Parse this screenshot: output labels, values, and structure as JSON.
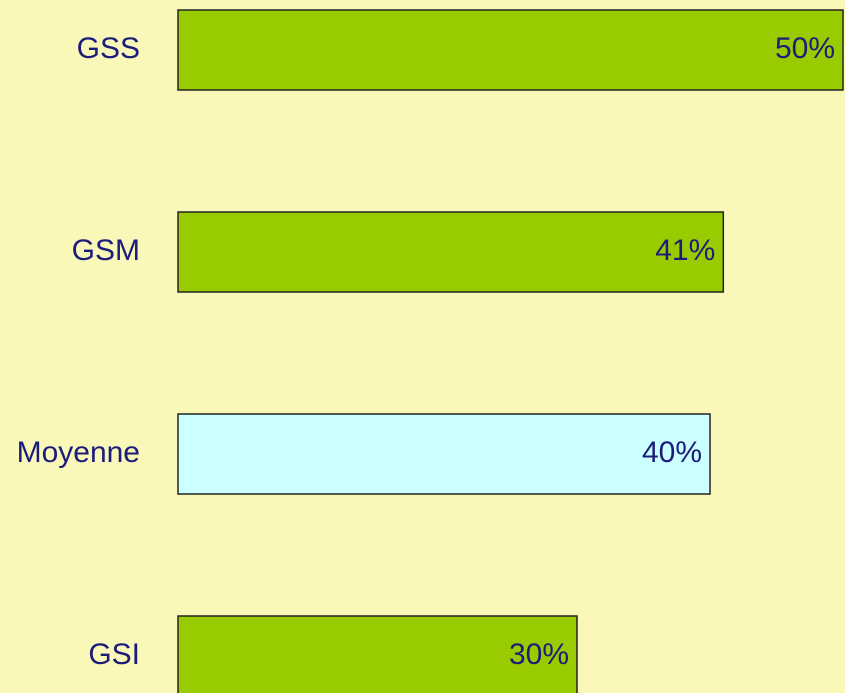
{
  "chart_data": {
    "type": "hbar",
    "categories": [
      "GSS",
      "GSM",
      "Moyenne",
      "GSI"
    ],
    "values": [
      50,
      41,
      40,
      30
    ],
    "value_labels": [
      "50%",
      "41%",
      "40%",
      "30%"
    ],
    "colors": [
      "#99cc00",
      "#99cc00",
      "#ccffff",
      "#99cc00"
    ]
  }
}
